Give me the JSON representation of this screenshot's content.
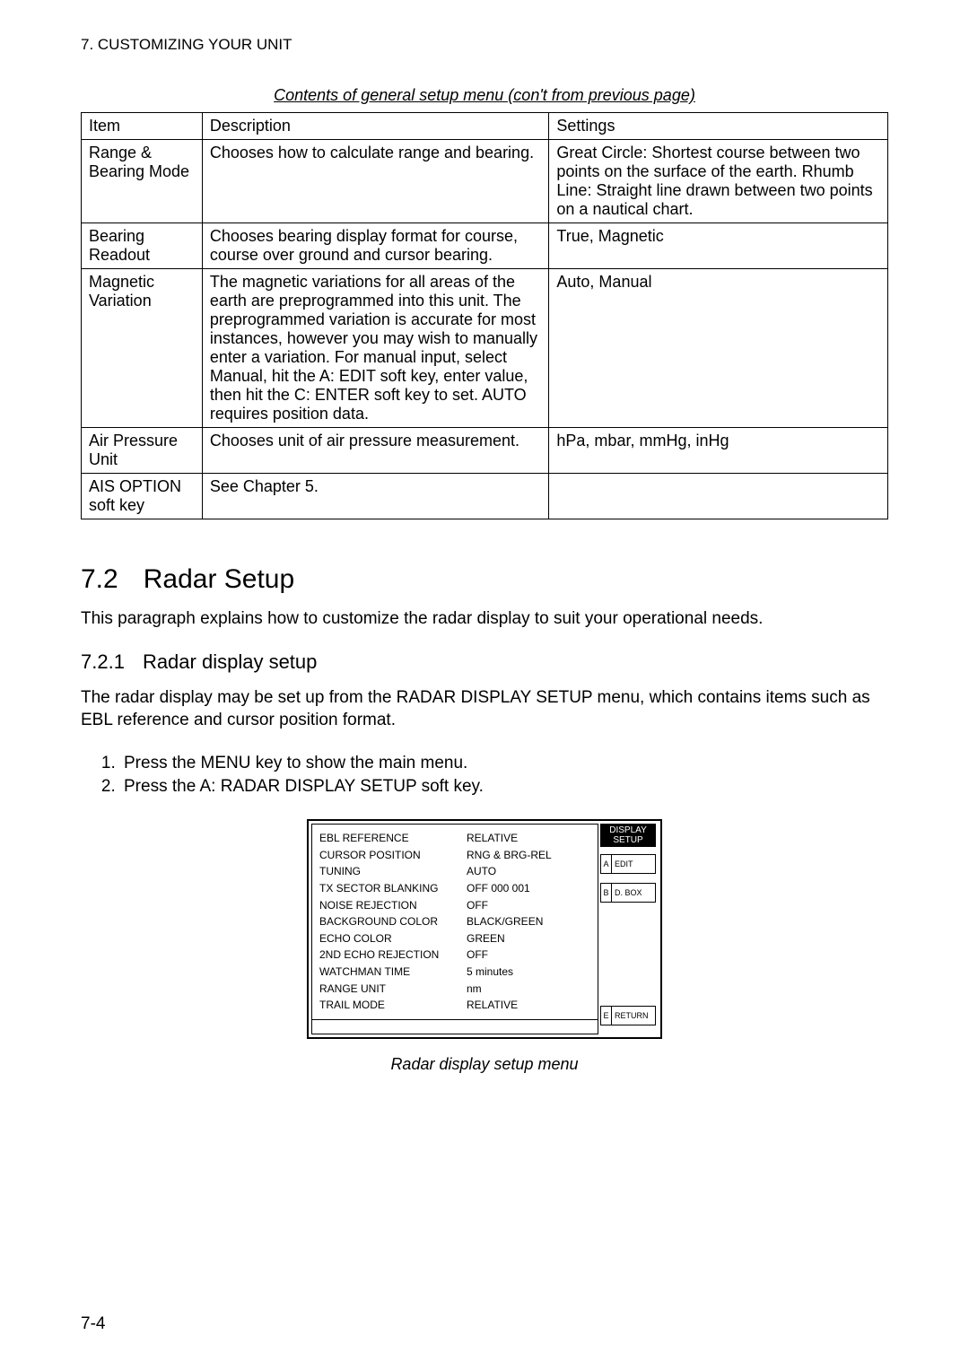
{
  "header": "7. CUSTOMIZING YOUR UNIT",
  "table_caption": "Contents of general setup menu (con't from previous page)",
  "table": {
    "columns": [
      "Item",
      "Description",
      "Settings"
    ],
    "rows": [
      {
        "item": "Range & Bearing Mode",
        "desc": "Chooses how to calculate range and bearing.",
        "settings": "Great Circle:  Shortest course between two points on the surface of the earth. Rhumb Line: Straight line drawn between two points on a nautical chart."
      },
      {
        "item": "Bearing Readout",
        "desc": "Chooses bearing display format for course, course over ground and cursor bearing.",
        "settings": "True, Magnetic"
      },
      {
        "item": "Magnetic Variation",
        "desc": "The magnetic variations for all areas of the earth are preprogrammed into this unit. The preprogrammed variation is accurate for most instances, however you may wish to manually enter a variation. For manual input, select Manual, hit the A: EDIT soft key, enter value, then hit the C: ENTER soft key to set.  AUTO  requires position data.",
        "settings": "Auto, Manual"
      },
      {
        "item": "Air Pressure Unit",
        "desc": "Chooses unit of air pressure measurement.",
        "settings": "hPa, mbar, mmHg, inHg"
      },
      {
        "item": "AIS OPTION soft key",
        "desc": "See Chapter 5.",
        "settings": ""
      }
    ]
  },
  "section": {
    "num": "7.2",
    "title": "Radar Setup"
  },
  "section_intro": "This paragraph explains how to customize the radar display to suit your operational needs.",
  "subsection": {
    "num": "7.2.1",
    "title": "Radar display setup"
  },
  "subsection_intro": "The radar display may be set up from the RADAR DISPLAY SETUP menu, which contains items such as EBL reference and cursor position format.",
  "steps": [
    "Press the MENU key to show the main menu.",
    "Press the A: RADAR DISPLAY SETUP soft key."
  ],
  "menu": {
    "title": "DISPLAY SETUP",
    "items": [
      {
        "label": "EBL REFERENCE",
        "value": "RELATIVE"
      },
      {
        "label": "CURSOR POSITION",
        "value": "RNG & BRG-REL"
      },
      {
        "label": "TUNING",
        "value": "AUTO"
      },
      {
        "label": "TX SECTOR BLANKING",
        "value": "OFF   000    001"
      },
      {
        "label": "NOISE REJECTION",
        "value": "OFF"
      },
      {
        "label": "BACKGROUND COLOR",
        "value": "BLACK/GREEN"
      },
      {
        "label": "ECHO COLOR",
        "value": "GREEN"
      },
      {
        "label": "2ND ECHO REJECTION",
        "value": "OFF"
      },
      {
        "label": "WATCHMAN TIME",
        "value": "5 minutes"
      },
      {
        "label": "RANGE UNIT",
        "value": "nm"
      },
      {
        "label": "TRAIL MODE",
        "value": "RELATIVE"
      }
    ],
    "softkeys": [
      {
        "letter": "A",
        "label": "EDIT"
      },
      {
        "letter": "B",
        "label": "D. BOX"
      },
      {
        "letter": "E",
        "label": "RETURN"
      }
    ]
  },
  "figure_caption": "Radar display setup menu",
  "page_number": "7-4"
}
